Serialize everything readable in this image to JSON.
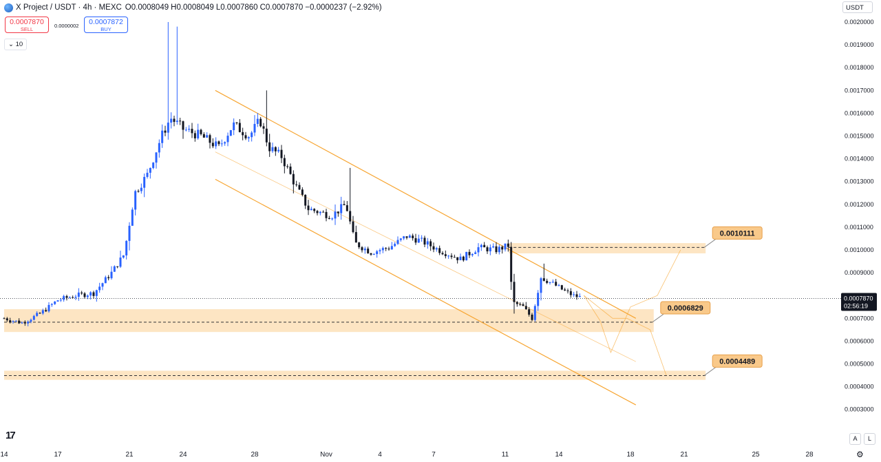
{
  "header": {
    "symbol_title": "X Project / USDT · 4h · MEXC",
    "ohlc": [
      {
        "key": "O",
        "value": "0.0008049"
      },
      {
        "key": "H",
        "value": "0.0008049"
      },
      {
        "key": "L",
        "value": "0.0007860"
      },
      {
        "key": "C",
        "value": "0.0007870"
      }
    ],
    "change": "−0.0000237 (−2.92%)",
    "sell_price": "0.0007870",
    "sell_label": "SELL",
    "spread": "0.0000002",
    "buy_price": "0.0007872",
    "buy_label": "BUY",
    "volume_toggle": "10"
  },
  "toolbar": {
    "currency": "USDT",
    "auto_label": "A",
    "log_label": "L"
  },
  "colors": {
    "up": "#2962ff",
    "down": "#131722",
    "channel": "#f7a531",
    "zone": "#fde0b8",
    "label_bg": "#f9c98a"
  },
  "icons": {
    "logo": "tradingview-logo-icon",
    "symbol": "x-project-coin-icon",
    "settings": "gear-icon",
    "toggle": "chevron-down-icon"
  },
  "chart_data": {
    "type": "candlestick",
    "interval": "4h",
    "ylim": [
      0.00025,
      0.00205
    ],
    "y_ticks": [
      "0.0020000",
      "0.0019000",
      "0.0018000",
      "0.0017000",
      "0.0016000",
      "0.0015000",
      "0.0014000",
      "0.0013000",
      "0.0012000",
      "0.0011000",
      "0.0010000",
      "0.0009000",
      "0.0007000",
      "0.0006000",
      "0.0005000",
      "0.0004000",
      "0.0003000"
    ],
    "x_ticks": [
      {
        "label": "14",
        "t": 0
      },
      {
        "label": "17",
        "t": 3
      },
      {
        "label": "21",
        "t": 7
      },
      {
        "label": "24",
        "t": 10
      },
      {
        "label": "28",
        "t": 14
      },
      {
        "label": "Nov",
        "t": 18
      },
      {
        "label": "4",
        "t": 21
      },
      {
        "label": "7",
        "t": 24
      },
      {
        "label": "11",
        "t": 28
      },
      {
        "label": "14",
        "t": 31
      },
      {
        "label": "18",
        "t": 35
      },
      {
        "label": "21",
        "t": 38
      },
      {
        "label": "25",
        "t": 42
      },
      {
        "label": "28",
        "t": 45
      }
    ],
    "anchors": [
      [
        0.0,
        0.0007
      ],
      [
        1.0,
        0.00068
      ],
      [
        2.0,
        0.00072
      ],
      [
        3.0,
        0.00078
      ],
      [
        4.0,
        0.0008
      ],
      [
        5.0,
        0.00081
      ],
      [
        6.0,
        0.0009
      ],
      [
        6.7,
        0.00098
      ],
      [
        7.3,
        0.00125
      ],
      [
        8.0,
        0.00133
      ],
      [
        8.8,
        0.0015
      ],
      [
        9.3,
        0.00158
      ],
      [
        10.0,
        0.00153
      ],
      [
        11.0,
        0.0015
      ],
      [
        12.0,
        0.00145
      ],
      [
        12.8,
        0.00155
      ],
      [
        13.7,
        0.0015
      ],
      [
        14.3,
        0.00157
      ],
      [
        14.8,
        0.00145
      ],
      [
        15.5,
        0.00141
      ],
      [
        16.3,
        0.00128
      ],
      [
        17.0,
        0.00118
      ],
      [
        18.3,
        0.00115
      ],
      [
        19.1,
        0.0012
      ],
      [
        19.6,
        0.00103
      ],
      [
        20.5,
        0.00099
      ],
      [
        21.5,
        0.00101
      ],
      [
        22.5,
        0.00106
      ],
      [
        23.3,
        0.00104
      ],
      [
        24.3,
        0.001
      ],
      [
        25.5,
        0.00096
      ],
      [
        26.5,
        0.00101
      ],
      [
        27.5,
        0.001
      ],
      [
        28.2,
        0.00102
      ],
      [
        28.4,
        0.00077
      ],
      [
        29.0,
        0.00075
      ],
      [
        29.5,
        0.0007
      ],
      [
        30.0,
        0.00088
      ],
      [
        30.7,
        0.00085
      ],
      [
        31.3,
        0.00082
      ],
      [
        31.8,
        0.0008
      ],
      [
        32.3,
        0.00079
      ]
    ],
    "spikes": [
      {
        "t": 9.2,
        "high": 0.002
      },
      {
        "t": 9.6,
        "high": 0.00198
      },
      {
        "t": 14.7,
        "high": 0.0017
      },
      {
        "t": 19.3,
        "high": 0.00136
      },
      {
        "t": 30.1,
        "high": 0.00094
      }
    ],
    "price_levels": [
      {
        "value": 0.0010111,
        "label": "0.0010111"
      },
      {
        "value": 0.0006829,
        "label": "0.0006829"
      },
      {
        "value": 0.0004489,
        "label": "0.0004489"
      }
    ],
    "zones": [
      {
        "low": 0.000985,
        "high": 0.00103,
        "t_start": 28.2,
        "t_end": 39.2
      },
      {
        "low": 0.00064,
        "high": 0.00074,
        "t_start": 0,
        "t_end": 36.3
      },
      {
        "low": 0.00043,
        "high": 0.00047,
        "t_start": 0,
        "t_end": 39.2
      }
    ],
    "channel": {
      "upper": [
        [
          11.8,
          0.0017
        ],
        [
          35.3,
          0.0007
        ]
      ],
      "middle": [
        [
          11.8,
          0.00143
        ],
        [
          35.3,
          0.00051
        ]
      ],
      "lower": [
        [
          11.8,
          0.00131
        ],
        [
          35.3,
          0.00032
        ]
      ]
    },
    "projection_paths": [
      [
        [
          32.4,
          0.0008
        ],
        [
          33.3,
          0.00069
        ],
        [
          33.9,
          0.00055
        ],
        [
          35.0,
          0.00075
        ],
        [
          36.5,
          0.0008
        ],
        [
          37.8,
          0.001
        ]
      ],
      [
        [
          32.4,
          0.0008
        ],
        [
          34.0,
          0.0007
        ],
        [
          34.8,
          0.0007
        ],
        [
          36.1,
          0.00065
        ],
        [
          37.0,
          0.00045
        ]
      ]
    ],
    "last_price": {
      "value": 0.000787,
      "label": "0.0007870",
      "countdown": "02:56:19"
    }
  }
}
